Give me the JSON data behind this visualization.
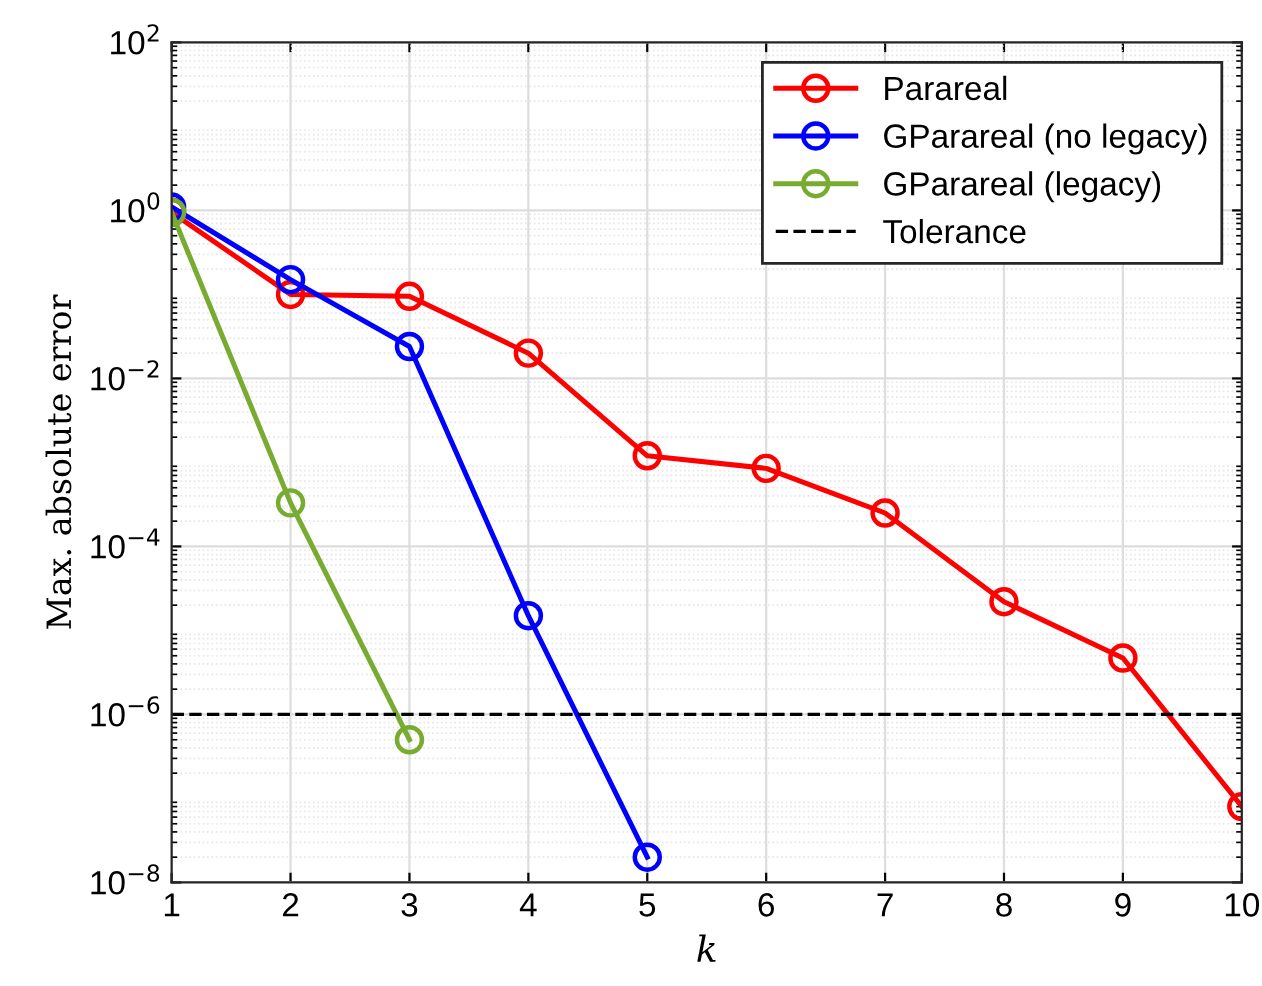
{
  "chart_data": {
    "type": "line",
    "xlabel": "k",
    "ylabel": "Max. absolute error",
    "series": [
      {
        "name": "Parareal",
        "color": "#ff0000",
        "x": [
          1,
          2,
          3,
          4,
          5,
          6,
          7,
          8,
          9,
          10
        ],
        "values": [
          0.95,
          0.1,
          0.095,
          0.02,
          0.0012,
          0.00085,
          0.00025,
          2.2e-05,
          4.7e-06,
          8e-08
        ]
      },
      {
        "name": "GParareal (no legacy)",
        "color": "#0000ff",
        "x": [
          1,
          2,
          3,
          4,
          5
        ],
        "values": [
          1.1,
          0.15,
          0.024,
          1.5e-05,
          2e-08
        ]
      },
      {
        "name": "GParareal (legacy)",
        "color": "#77ac30",
        "x": [
          1,
          2,
          3
        ],
        "values": [
          0.95,
          0.00033,
          5e-07
        ]
      }
    ],
    "ref_lines": [
      {
        "axis": "y",
        "value": 1e-06,
        "label": "Tolerance",
        "color": "#000000",
        "line_style": "dashed"
      }
    ],
    "log": "y",
    "xlim": [
      1,
      10
    ],
    "xticks": [
      1,
      2,
      3,
      4,
      5,
      6,
      7,
      8,
      9,
      10
    ],
    "ylim": [
      1e-08,
      100
    ],
    "yticks": [
      {
        "value": 1e-08,
        "label": "10$^{−8}$"
      },
      {
        "value": 1e-06,
        "label": "10$^{−6}$"
      },
      {
        "value": 0.0001,
        "label": "10$^{−4}$"
      },
      {
        "value": 0.01,
        "label": "10$^{−2}$"
      },
      {
        "value": 1,
        "label": "10$^{0}$"
      },
      {
        "value": 100,
        "label": "10$^{2}$"
      }
    ],
    "grid": true,
    "legend": "top right",
    "marker": "circle",
    "line_style": "solid"
  }
}
